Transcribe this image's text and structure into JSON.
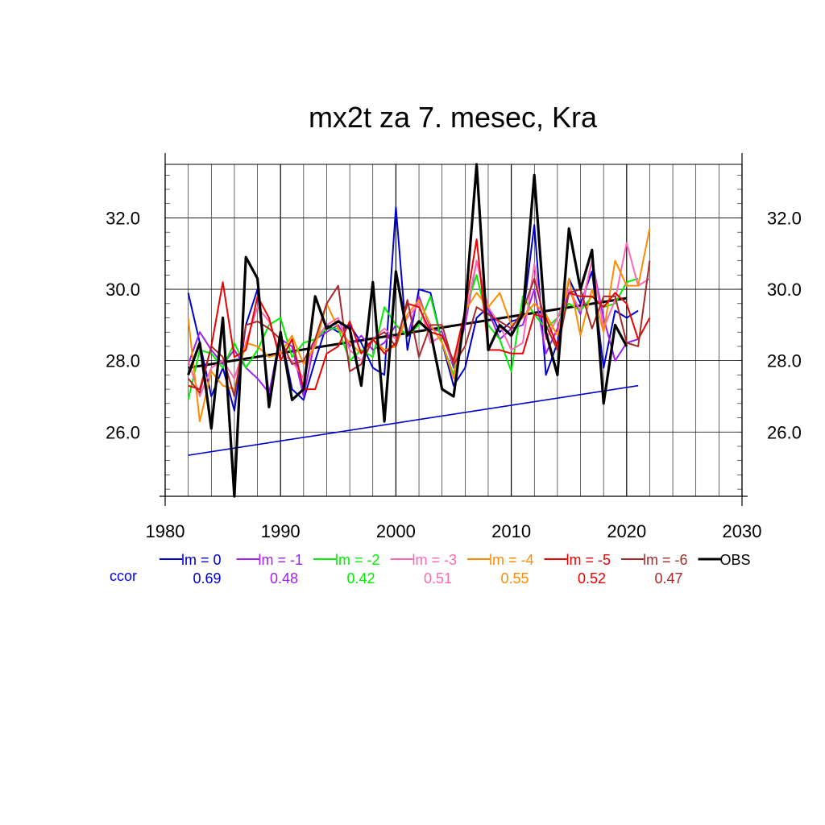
{
  "chart_data": {
    "type": "line",
    "title": "mx2t za 7. mesec, Kra",
    "xlabel": "",
    "ylabel": "",
    "xlim": [
      1980,
      2030
    ],
    "ylim": [
      24.2,
      33.5
    ],
    "xticks": [
      1980,
      1990,
      2000,
      2010,
      2020,
      2030
    ],
    "xtick_labels": [
      "1980",
      "1990",
      "2000",
      "2010",
      "2020",
      "2030"
    ],
    "yticks": [
      26.0,
      28.0,
      30.0,
      32.0
    ],
    "ytick_labels": [
      "26.0",
      "28.0",
      "30.0",
      "32.0"
    ],
    "grid": true,
    "legend_position": "bottom",
    "ccor_label": "ccor",
    "ccor_color": "#0000ff",
    "series": [
      {
        "name": "lm = 0",
        "color": "#0000cc",
        "ccor": "0.69",
        "x_start": 1982,
        "values": [
          29.9,
          28.5,
          27.0,
          27.8,
          26.6,
          29.0,
          30.0,
          27.0,
          28.8,
          27.2,
          26.9,
          28.0,
          29.0,
          28.8,
          29.0,
          28.5,
          27.8,
          27.6,
          32.3,
          28.3,
          30.0,
          29.9,
          28.5,
          27.3,
          27.8,
          29.2,
          29.5,
          28.8,
          29.1,
          29.2,
          31.8,
          27.6,
          28.5,
          30.3,
          29.6,
          30.5,
          27.8,
          29.4,
          29.2,
          29.4
        ]
      },
      {
        "name": "lm = -1",
        "color": "#a020f0",
        "ccor": "0.48",
        "x_start": 1982,
        "values": [
          27.9,
          28.8,
          28.3,
          27.9,
          28.3,
          27.8,
          27.5,
          27.1,
          28.6,
          28.4,
          27.0,
          28.6,
          28.8,
          29.0,
          28.4,
          28.7,
          28.3,
          28.5,
          29.0,
          28.7,
          29.8,
          28.9,
          28.8,
          27.8,
          29.0,
          30.8,
          29.4,
          28.6,
          28.9,
          29.0,
          30.0,
          28.2,
          28.9,
          30.0,
          29.3,
          30.8,
          29.2,
          28.0,
          28.5,
          28.6
        ]
      },
      {
        "name": "lm = -2",
        "color": "#00ee00",
        "ccor": "0.42",
        "x_start": 1982,
        "values": [
          26.9,
          28.3,
          28.2,
          27.8,
          28.5,
          27.8,
          28.3,
          29.0,
          29.2,
          28.1,
          28.5,
          28.6,
          28.9,
          28.9,
          28.0,
          28.3,
          28.1,
          29.5,
          29.0,
          28.7,
          29.0,
          29.8,
          28.5,
          27.6,
          29.4,
          30.4,
          29.0,
          28.6,
          27.7,
          29.8,
          29.3,
          28.9,
          29.2,
          29.6,
          29.4,
          29.8,
          29.5,
          29.6,
          30.2,
          30.3
        ]
      },
      {
        "name": "lm = -3",
        "color": "#ff69b4",
        "ccor": "0.51",
        "x_start": 1982,
        "values": [
          28.0,
          27.0,
          27.8,
          28.0,
          27.5,
          28.5,
          29.5,
          29.1,
          28.2,
          28.0,
          27.5,
          28.6,
          29.0,
          29.2,
          28.3,
          28.0,
          28.6,
          28.9,
          28.6,
          29.2,
          29.6,
          28.5,
          28.7,
          27.9,
          29.2,
          30.8,
          29.5,
          29.0,
          28.3,
          28.5,
          30.7,
          28.6,
          29.2,
          30.0,
          29.4,
          30.8,
          28.9,
          29.7,
          31.3,
          30.1,
          30.3
        ]
      },
      {
        "name": "lm = -4",
        "color": "#ff8c00",
        "ccor": "0.55",
        "x_start": 1982,
        "values": [
          29.2,
          26.3,
          27.7,
          27.3,
          27.2,
          28.5,
          28.4,
          28.1,
          28.2,
          28.7,
          27.9,
          28.4,
          29.6,
          28.9,
          28.5,
          28.2,
          28.6,
          28.3,
          28.4,
          29.3,
          29.7,
          29.0,
          28.5,
          27.5,
          29.4,
          29.9,
          29.5,
          29.9,
          29.0,
          29.2,
          29.6,
          29.3,
          28.7,
          30.3,
          28.7,
          30.0,
          28.8,
          30.8,
          30.1,
          30.1,
          31.7
        ]
      },
      {
        "name": "lm = -5",
        "color": "#ee0000",
        "ccor": "0.52",
        "x_start": 1982,
        "values": [
          27.3,
          27.2,
          28.4,
          30.2,
          28.1,
          28.3,
          29.8,
          29.2,
          28.0,
          28.6,
          27.2,
          27.2,
          28.2,
          28.4,
          29.1,
          28.2,
          28.6,
          28.2,
          28.5,
          29.6,
          29.5,
          28.8,
          28.7,
          28.0,
          29.4,
          31.4,
          28.3,
          28.3,
          28.2,
          28.2,
          29.3,
          29.2,
          28.4,
          29.9,
          29.8,
          29.8,
          29.5,
          29.9,
          29.6,
          28.6,
          29.2
        ]
      },
      {
        "name": "lm = -6",
        "color": "#a52a2a",
        "ccor": "0.47",
        "x_start": 1982,
        "values": [
          27.5,
          27.1,
          28.4,
          28.1,
          27.0,
          29.0,
          29.1,
          28.9,
          28.6,
          27.9,
          28.0,
          28.6,
          29.6,
          30.1,
          27.7,
          27.9,
          28.6,
          28.8,
          28.4,
          29.7,
          28.1,
          29.0,
          29.0,
          27.9,
          28.4,
          29.5,
          29.3,
          29.1,
          28.9,
          29.4,
          30.3,
          29.0,
          28.3,
          29.9,
          30.0,
          28.9,
          29.8,
          29.8,
          28.5,
          28.4,
          30.8
        ]
      },
      {
        "name": "OBS",
        "color": "#000000",
        "ccor": "",
        "x_start": 1982,
        "values": [
          27.6,
          28.5,
          26.1,
          29.2,
          24.2,
          30.9,
          30.3,
          26.7,
          28.8,
          26.9,
          27.2,
          29.8,
          28.9,
          29.1,
          28.9,
          27.3,
          30.2,
          26.3,
          30.5,
          28.7,
          29.1,
          28.8,
          27.2,
          27.0,
          29.4,
          33.5,
          28.3,
          29.0,
          28.7,
          29.3,
          33.2,
          28.8,
          27.6,
          31.7,
          30.0,
          31.1,
          26.8,
          29.0,
          28.4
        ]
      }
    ],
    "trend_lines": [
      {
        "color": "#0000cc",
        "x": [
          1982,
          2021
        ],
        "y": [
          25.35,
          27.3
        ]
      },
      {
        "color": "#000000",
        "x": [
          1982,
          2020
        ],
        "y": [
          27.8,
          29.75
        ]
      }
    ]
  }
}
